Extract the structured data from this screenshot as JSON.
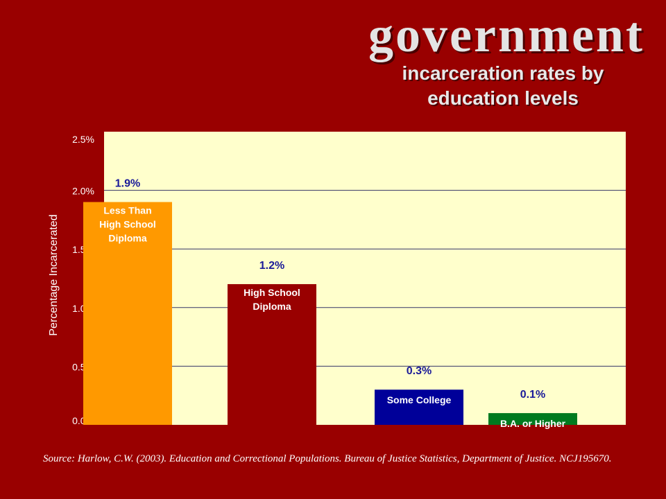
{
  "header": {
    "title": "government",
    "subtitle": "incarceration rates by education levels"
  },
  "colors": {
    "background": "#990000",
    "plot_background": "#ffffcc",
    "gridline": "#333366",
    "tick_text": "#ffffff",
    "value_label": "#1a1a99",
    "bar_text": "#ffffff"
  },
  "chart_data": {
    "type": "bar",
    "title": "incarceration rates by education levels",
    "xlabel": "",
    "ylabel": "Percentage Incarcerated",
    "ylim": [
      0,
      2.5
    ],
    "yticks": [
      "0.0%",
      "0.5%",
      "1.0%",
      "1.5%",
      "2.0%",
      "2.5%"
    ],
    "grid": true,
    "legend": "none",
    "categories": [
      "Less Than High School Diploma",
      "High School Diploma",
      "Some College",
      "B.A. or Higher"
    ],
    "values": [
      1.9,
      1.2,
      0.3,
      0.1
    ],
    "value_labels": [
      "1.9%",
      "1.2%",
      "0.3%",
      "0.1%"
    ],
    "bar_colors": [
      "#ff9900",
      "#990000",
      "#000099",
      "#007a1f"
    ]
  },
  "footer": {
    "source": "Source:  Harlow, C.W.  (2003).  Education and Correctional Populations.  Bureau of Justice Statistics, Department of Justice.  NCJ195670."
  }
}
